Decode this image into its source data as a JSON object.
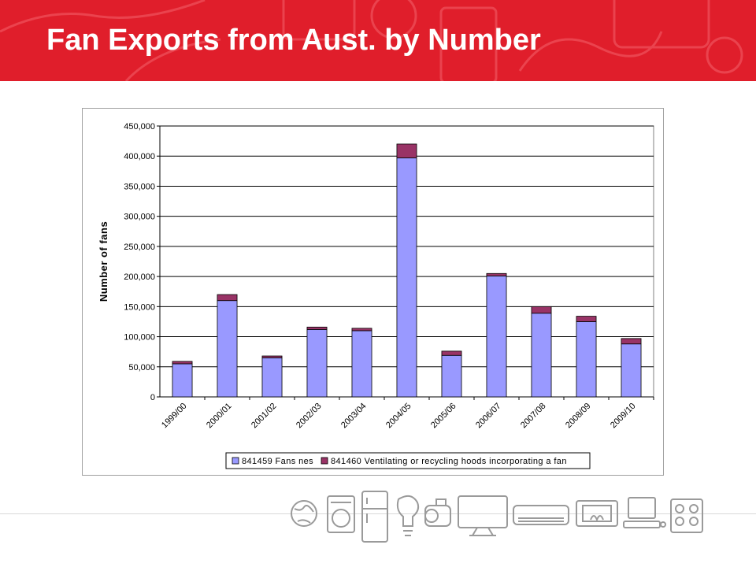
{
  "slide": {
    "title": "Fan Exports from Aust. by Number"
  },
  "colors": {
    "banner": "#e01e2b",
    "series_fans": "#9999ff",
    "series_hoods": "#993366"
  },
  "footer": {
    "icons": [
      "globe-icon",
      "washing-machine-icon",
      "refrigerator-icon",
      "light-bulb-icon",
      "motor-icon",
      "television-icon",
      "air-conditioner-icon",
      "heater-icon",
      "computer-icon",
      "stove-icon"
    ]
  },
  "chart_data": {
    "type": "bar",
    "stacked": true,
    "categories": [
      "1999/00",
      "2000/01",
      "2001/02",
      "2002/03",
      "2003/04",
      "2004/05",
      "2005/06",
      "2006/07",
      "2007/08",
      "2008/09",
      "2009/10"
    ],
    "series": [
      {
        "name": "841459 Fans nes",
        "color": "#9999ff",
        "values": [
          55000,
          160000,
          65000,
          112000,
          110000,
          397000,
          69000,
          201000,
          139000,
          125000,
          88000
        ]
      },
      {
        "name": "841460 Ventilating or recycling hoods incorporating a fan",
        "color": "#993366",
        "values": [
          4000,
          10000,
          3000,
          4000,
          4000,
          23000,
          7000,
          4000,
          11000,
          9000,
          9000
        ]
      }
    ],
    "title": "",
    "xlabel": "",
    "ylabel": "Number of fans",
    "ylim": [
      0,
      450000
    ],
    "yticks": [
      "0",
      "50,000",
      "100,000",
      "150,000",
      "200,000",
      "250,000",
      "300,000",
      "350,000",
      "400,000",
      "450,000"
    ],
    "grid": true,
    "legend_position": "bottom"
  }
}
